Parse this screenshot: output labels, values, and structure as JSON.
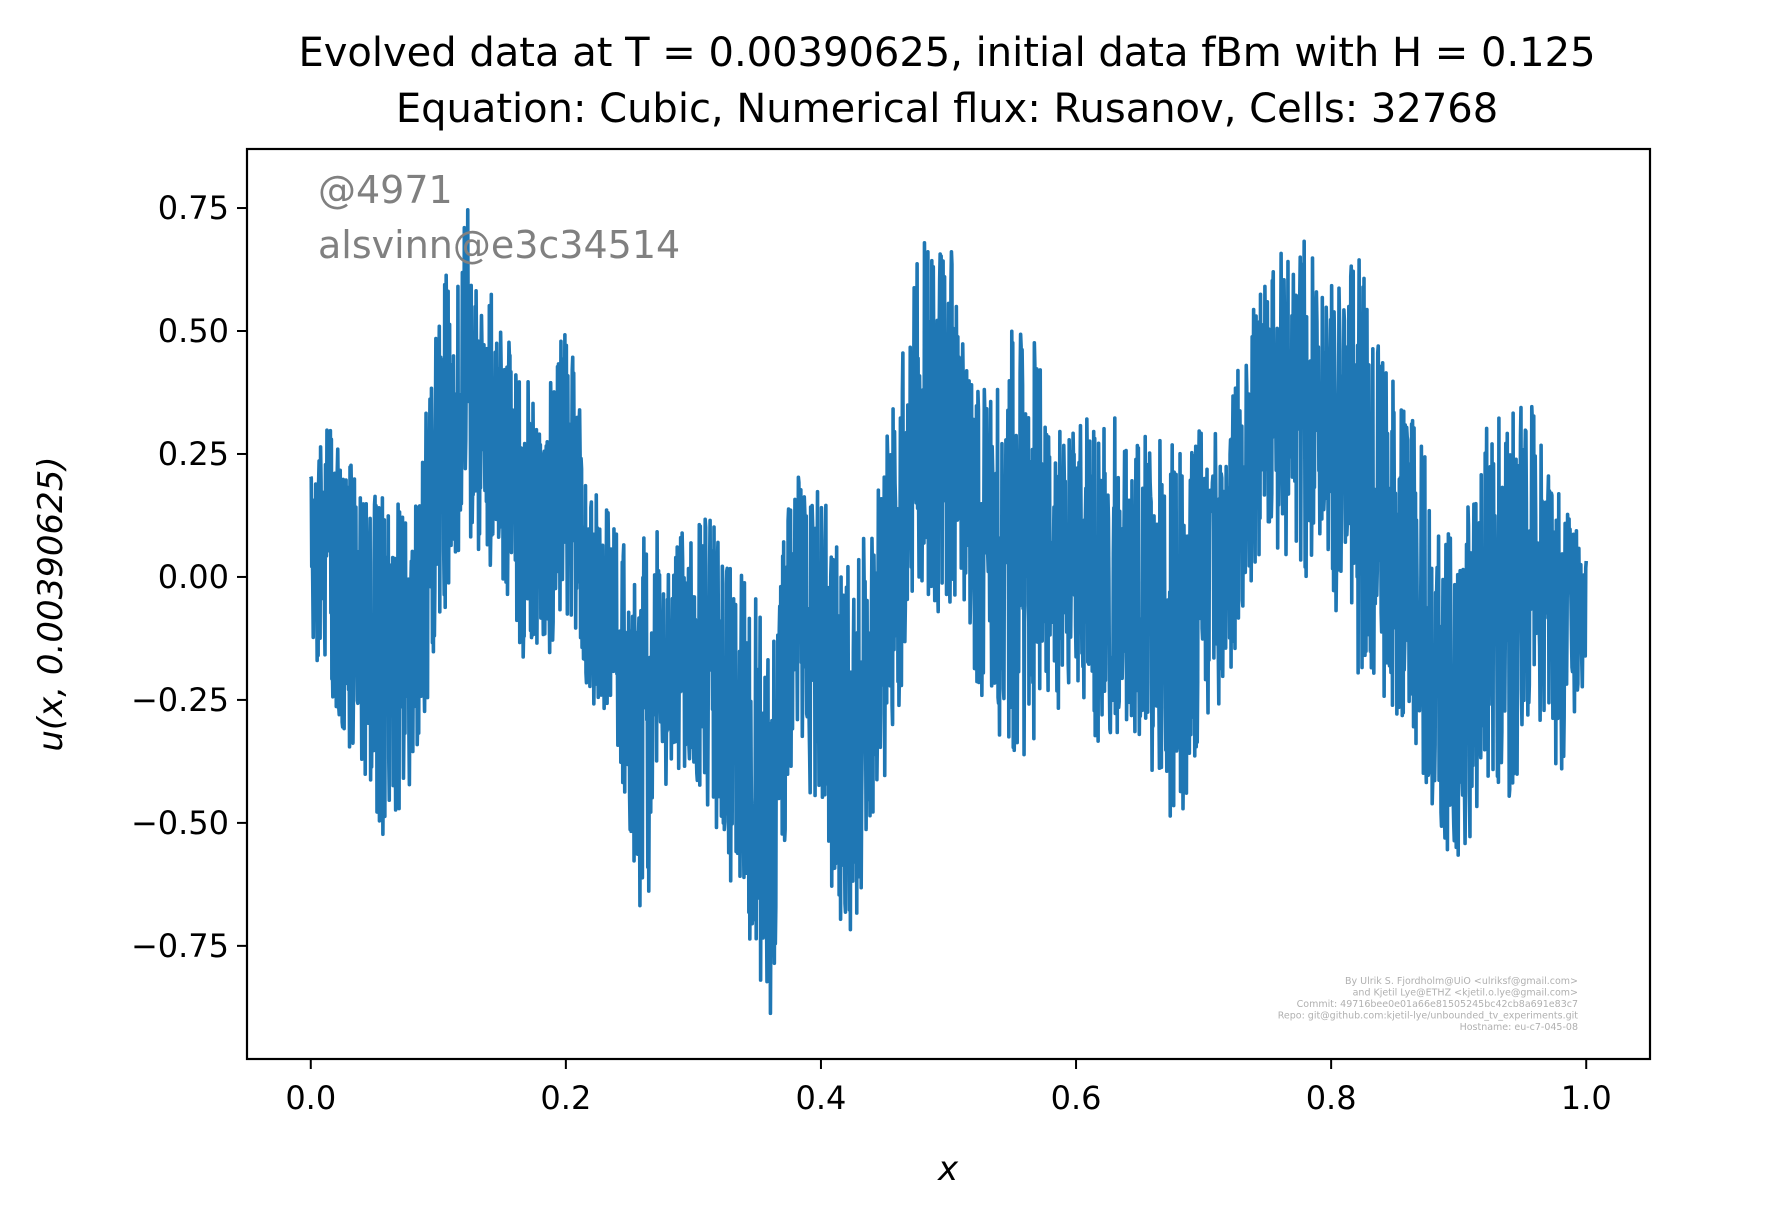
{
  "chart_data": {
    "type": "line",
    "title": "Evolved data at T = 0.00390625, initial data fBm with H = 0.125",
    "subtitle": "Equation: Cubic, Numerical flux: Rusanov, Cells: 32768",
    "xlabel": "x",
    "ylabel": "u(x, 0.00390625)",
    "xlim": [
      -0.05,
      1.05
    ],
    "ylim": [
      -0.98,
      0.87
    ],
    "x_ticks": [
      0.0,
      0.2,
      0.4,
      0.6,
      0.8,
      1.0
    ],
    "x_tick_labels": [
      "0.0",
      "0.2",
      "0.4",
      "0.6",
      "0.8",
      "1.0"
    ],
    "y_ticks": [
      0.75,
      0.5,
      0.25,
      0.0,
      -0.25,
      -0.5,
      -0.75
    ],
    "y_tick_labels": [
      "0.75",
      "0.50",
      "0.25",
      "0.00",
      "−0.25",
      "−0.50",
      "−0.75"
    ],
    "grid": false,
    "legend": "none",
    "series_color": "#1f77b4",
    "envelope": {
      "x": [
        0.0,
        0.02,
        0.04,
        0.06,
        0.08,
        0.1,
        0.12,
        0.14,
        0.16,
        0.18,
        0.2,
        0.22,
        0.24,
        0.26,
        0.28,
        0.3,
        0.32,
        0.34,
        0.36,
        0.38,
        0.4,
        0.42,
        0.44,
        0.46,
        0.48,
        0.5,
        0.52,
        0.54,
        0.56,
        0.58,
        0.6,
        0.62,
        0.64,
        0.66,
        0.68,
        0.7,
        0.72,
        0.74,
        0.76,
        0.78,
        0.8,
        0.82,
        0.84,
        0.86,
        0.88,
        0.9,
        0.92,
        0.94,
        0.96,
        0.98,
        1.0
      ],
      "y_max": [
        0.25,
        0.33,
        0.18,
        0.2,
        0.1,
        0.55,
        0.78,
        0.6,
        0.45,
        0.35,
        0.55,
        0.2,
        0.1,
        0.15,
        0.05,
        0.15,
        0.1,
        0.0,
        -0.1,
        0.25,
        0.2,
        0.05,
        0.1,
        0.45,
        0.7,
        0.7,
        0.45,
        0.4,
        0.63,
        0.3,
        0.3,
        0.35,
        0.3,
        0.3,
        0.3,
        0.3,
        0.35,
        0.6,
        0.68,
        0.7,
        0.6,
        0.68,
        0.45,
        0.35,
        0.2,
        0.1,
        0.3,
        0.35,
        0.35,
        0.18,
        0.05
      ],
      "y_min": [
        -0.17,
        -0.32,
        -0.38,
        -0.58,
        -0.4,
        -0.15,
        0.1,
        0.0,
        -0.15,
        -0.2,
        -0.1,
        -0.25,
        -0.35,
        -0.72,
        -0.4,
        -0.4,
        -0.55,
        -0.72,
        -0.9,
        -0.3,
        -0.55,
        -0.78,
        -0.55,
        -0.3,
        -0.05,
        -0.1,
        -0.2,
        -0.35,
        -0.4,
        -0.3,
        -0.25,
        -0.35,
        -0.3,
        -0.4,
        -0.57,
        -0.3,
        -0.25,
        0.0,
        0.05,
        0.0,
        -0.05,
        -0.2,
        -0.25,
        -0.3,
        -0.5,
        -0.65,
        -0.45,
        -0.45,
        -0.35,
        -0.4,
        -0.2
      ]
    }
  },
  "watermark": {
    "line1": "@4971",
    "line2": "alsvinn@e3c34514"
  },
  "credits": [
    "By Ulrik S. Fjordholm@UiO <ulriksf@gmail.com>",
    "and Kjetil Lye@ETHZ <kjetil.o.lye@gmail.com>",
    "Commit: 49716bee0e01a66e81505245bc42cb8a691e83c7",
    "Repo: git@github.com:kjetil-lye/unbounded_tv_experiments.git",
    "Hostname: eu-c7-045-08"
  ]
}
